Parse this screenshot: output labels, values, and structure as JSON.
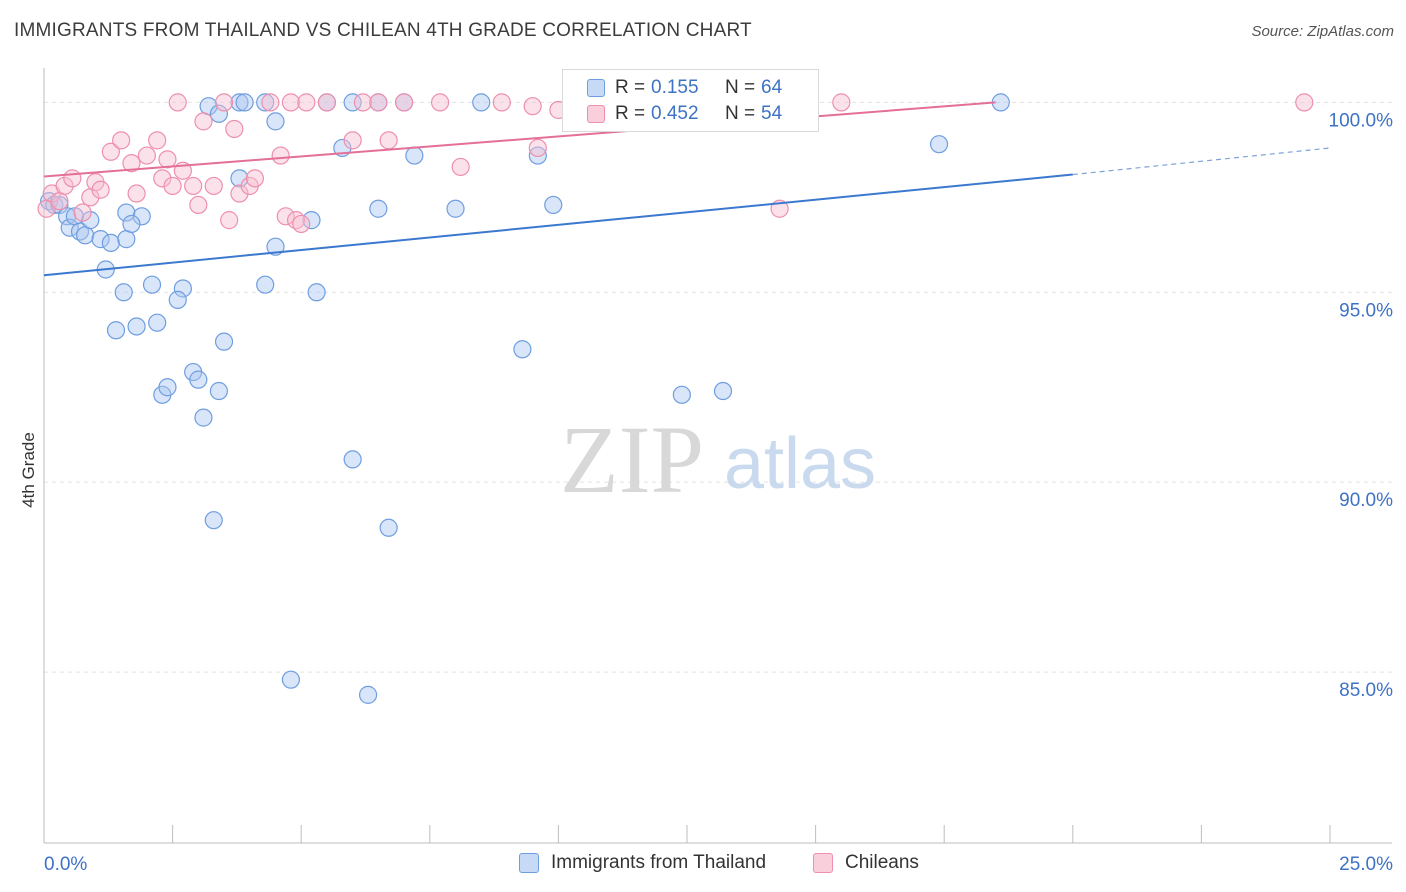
{
  "title": "IMMIGRANTS FROM THAILAND VS CHILEAN 4TH GRADE CORRELATION CHART",
  "source": "Source: ZipAtlas.com",
  "watermark": {
    "zip": "ZIP",
    "atlas": "atlas"
  },
  "legend": {
    "rows": [
      {
        "r_label": "R =",
        "r_value": "0.155",
        "n_label": "N =",
        "n_value": "64",
        "color": "#8fb4e8"
      },
      {
        "r_label": "R =",
        "r_value": "0.452",
        "n_label": "N =",
        "n_value": "54",
        "color": "#f4a7c0"
      }
    ]
  },
  "chart_data": {
    "type": "scatter",
    "xlabel": "",
    "ylabel": "4th Grade",
    "xlim": [
      0,
      25
    ],
    "ylim": [
      80.5,
      100.8
    ],
    "x_tick_labels": [
      "0.0%",
      "25.0%"
    ],
    "y_ticks": [
      100,
      95,
      90,
      85
    ],
    "y_tick_labels": [
      "100.0%",
      "95.0%",
      "90.0%",
      "85.0%"
    ],
    "grid": true,
    "series": [
      {
        "name": "Immigrants from Thailand",
        "color": "#6f9ee0",
        "fill": "#aac6f0",
        "trend": {
          "x": [
            0,
            20
          ],
          "y": [
            95.45,
            98.1
          ],
          "extend_to": 25,
          "extend_y": 98.8
        },
        "points": [
          [
            0.1,
            97.4
          ],
          [
            0.2,
            97.3
          ],
          [
            0.3,
            97.3
          ],
          [
            0.45,
            97.0
          ],
          [
            0.5,
            96.7
          ],
          [
            0.6,
            97.0
          ],
          [
            0.7,
            96.6
          ],
          [
            0.8,
            96.5
          ],
          [
            0.9,
            96.9
          ],
          [
            1.1,
            96.4
          ],
          [
            1.3,
            96.3
          ],
          [
            1.2,
            95.6
          ],
          [
            1.6,
            97.1
          ],
          [
            1.9,
            97.0
          ],
          [
            1.6,
            96.4
          ],
          [
            1.7,
            96.8
          ],
          [
            1.55,
            95.0
          ],
          [
            2.1,
            95.2
          ],
          [
            2.7,
            95.1
          ],
          [
            2.6,
            94.8
          ],
          [
            1.4,
            94.0
          ],
          [
            1.8,
            94.1
          ],
          [
            2.2,
            94.2
          ],
          [
            3.5,
            93.7
          ],
          [
            2.3,
            92.3
          ],
          [
            2.4,
            92.5
          ],
          [
            2.9,
            92.9
          ],
          [
            3.0,
            92.7
          ],
          [
            3.4,
            92.4
          ],
          [
            3.1,
            91.7
          ],
          [
            4.5,
            96.2
          ],
          [
            4.3,
            95.2
          ],
          [
            5.3,
            95.0
          ],
          [
            4.5,
            99.5
          ],
          [
            3.2,
            99.9
          ],
          [
            3.4,
            99.7
          ],
          [
            3.8,
            100.0
          ],
          [
            3.9,
            100.0
          ],
          [
            4.3,
            100.0
          ],
          [
            5.5,
            100.0
          ],
          [
            6.0,
            100.0
          ],
          [
            6.5,
            100.0
          ],
          [
            7.0,
            100.0
          ],
          [
            8.5,
            100.0
          ],
          [
            11.0,
            100.0
          ],
          [
            11.2,
            100.0
          ],
          [
            5.8,
            98.8
          ],
          [
            7.2,
            98.6
          ],
          [
            9.6,
            98.6
          ],
          [
            3.8,
            98.0
          ],
          [
            6.5,
            97.2
          ],
          [
            5.2,
            96.9
          ],
          [
            8.0,
            97.2
          ],
          [
            3.3,
            89.0
          ],
          [
            6.0,
            90.6
          ],
          [
            6.7,
            88.8
          ],
          [
            9.3,
            93.5
          ],
          [
            12.4,
            92.3
          ],
          [
            13.2,
            92.4
          ],
          [
            4.8,
            84.8
          ],
          [
            6.3,
            84.4
          ],
          [
            17.4,
            98.9
          ],
          [
            18.6,
            100.0
          ],
          [
            9.9,
            97.3
          ]
        ]
      },
      {
        "name": "Chileans",
        "color": "#ee8fae",
        "fill": "#f7bfd1",
        "trend": {
          "x": [
            0,
            18.5
          ],
          "y": [
            98.05,
            100.0
          ]
        },
        "points": [
          [
            0.05,
            97.2
          ],
          [
            0.15,
            97.6
          ],
          [
            0.3,
            97.4
          ],
          [
            0.4,
            97.8
          ],
          [
            0.55,
            98.0
          ],
          [
            0.9,
            97.5
          ],
          [
            0.75,
            97.1
          ],
          [
            1.0,
            97.9
          ],
          [
            1.1,
            97.7
          ],
          [
            1.3,
            98.7
          ],
          [
            1.5,
            99.0
          ],
          [
            1.7,
            98.4
          ],
          [
            1.8,
            97.6
          ],
          [
            2.0,
            98.6
          ],
          [
            2.2,
            99.0
          ],
          [
            2.3,
            98.0
          ],
          [
            2.4,
            98.5
          ],
          [
            2.5,
            97.8
          ],
          [
            2.7,
            98.2
          ],
          [
            2.9,
            97.8
          ],
          [
            3.0,
            97.3
          ],
          [
            3.3,
            97.8
          ],
          [
            3.6,
            96.9
          ],
          [
            3.8,
            97.6
          ],
          [
            4.0,
            97.8
          ],
          [
            4.1,
            98.0
          ],
          [
            4.6,
            98.6
          ],
          [
            4.7,
            97.0
          ],
          [
            4.9,
            96.9
          ],
          [
            5.0,
            96.8
          ],
          [
            3.7,
            99.3
          ],
          [
            3.1,
            99.5
          ],
          [
            3.5,
            100.0
          ],
          [
            2.6,
            100.0
          ],
          [
            4.4,
            100.0
          ],
          [
            4.8,
            100.0
          ],
          [
            5.1,
            100.0
          ],
          [
            5.5,
            100.0
          ],
          [
            6.2,
            100.0
          ],
          [
            6.5,
            100.0
          ],
          [
            7.0,
            100.0
          ],
          [
            7.7,
            100.0
          ],
          [
            8.9,
            100.0
          ],
          [
            9.5,
            99.9
          ],
          [
            10.0,
            99.8
          ],
          [
            11.5,
            100.0
          ],
          [
            12.5,
            100.0
          ],
          [
            15.5,
            100.0
          ],
          [
            6.0,
            99.0
          ],
          [
            6.7,
            99.0
          ],
          [
            9.6,
            98.8
          ],
          [
            8.1,
            98.3
          ],
          [
            14.3,
            97.2
          ],
          [
            24.5,
            100.0
          ]
        ]
      }
    ]
  }
}
